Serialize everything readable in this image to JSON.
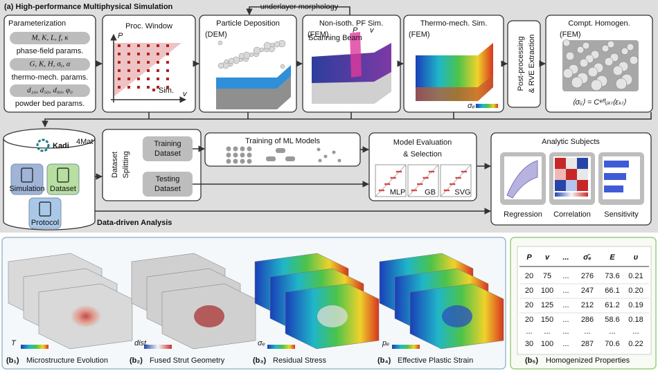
{
  "panel_a": {
    "title": "(a) High-performance Multiphysical Simulation",
    "feedback_label": "underlayer morphology",
    "parameterization": {
      "title": "Parameterization",
      "groups": [
        {
          "symbols": "M, K, L, f, κ",
          "label": "phase-field params."
        },
        {
          "symbols": "G, K, H, σᵧ, α",
          "label": "thermo-mech. params."
        },
        {
          "symbols": "d₁₀, d₅₀, d₉₀, φ₀",
          "label": "powder bed params."
        }
      ]
    },
    "process_window": {
      "title": "Proc. Window",
      "y_axis": "P",
      "x_axis": "v",
      "legend": "Sim."
    },
    "particle_deposition": {
      "title": "Particle Deposition",
      "method": "(DEM)"
    },
    "pf_simulation": {
      "title": "Non-isoth. PF Sim.",
      "method": "(FEM)",
      "beam_label": "Scanning Beam",
      "power": "P",
      "velocity": "v"
    },
    "thermo_mech": {
      "title": "Thermo-mech. Sim.",
      "method": "(FEM)",
      "colorbar": "σₑ"
    },
    "post_processing": {
      "lines": [
        "Post-processing",
        "& RVE Extraction"
      ]
    },
    "homogenization": {
      "title": "Compt. Homogen.",
      "method": "(FEM)",
      "equation": "⟨σᵢⱼ⟩ = Cᵉᶠᶠᵢⱼₖₗ⟨εₖₗ⟩"
    }
  },
  "panel_data": {
    "title": "Data-driven Analysis",
    "kadi": {
      "name": "Kadi",
      "superscript": "4Mat",
      "items": [
        "Simulation",
        "Dataset",
        "Protocol"
      ]
    },
    "splitting": {
      "title_lines": [
        "Dataset",
        "Splitting"
      ],
      "training": [
        "Training",
        "Dataset"
      ],
      "testing": [
        "Testing",
        "Dataset"
      ]
    },
    "training_models": "Training of ML Models",
    "evaluation": {
      "title_lines": [
        "Model Evaluation",
        "& Selection"
      ],
      "models": [
        "MLP",
        "GB",
        "SVG"
      ]
    },
    "analytics": {
      "title": "Analytic Subjects",
      "subjects": [
        "Regression",
        "Correlation",
        "Sensitivity"
      ]
    }
  },
  "panel_b": [
    {
      "tag": "(b₁)",
      "caption": "Microstructure Evolution",
      "colorbar": "T"
    },
    {
      "tag": "(b₂)",
      "caption": "Fused Strut Geometry",
      "colorbar": "dist."
    },
    {
      "tag": "(b₃)",
      "caption": "Residual Stress",
      "colorbar": "σₑ"
    },
    {
      "tag": "(b₄)",
      "caption": "Effective Plastic Strain",
      "colorbar": "pₑ"
    }
  ],
  "table": {
    "tag": "(b₅)",
    "caption": "Homogenized Properties",
    "header": [
      "P",
      "v",
      "...",
      "σ̄ₑ",
      "E",
      "υ"
    ],
    "rows": [
      [
        "20",
        "75",
        "...",
        "276",
        "73.6",
        "0.21"
      ],
      [
        "20",
        "100",
        "...",
        "247",
        "66.1",
        "0.20"
      ],
      [
        "20",
        "125",
        "...",
        "212",
        "61.2",
        "0.19"
      ],
      [
        "20",
        "150",
        "...",
        "286",
        "58.6",
        "0.18"
      ],
      [
        "...",
        "...",
        "...",
        "...",
        "...",
        "..."
      ],
      [
        "30",
        "100",
        "...",
        "287",
        "70.6",
        "0.22"
      ]
    ]
  }
}
